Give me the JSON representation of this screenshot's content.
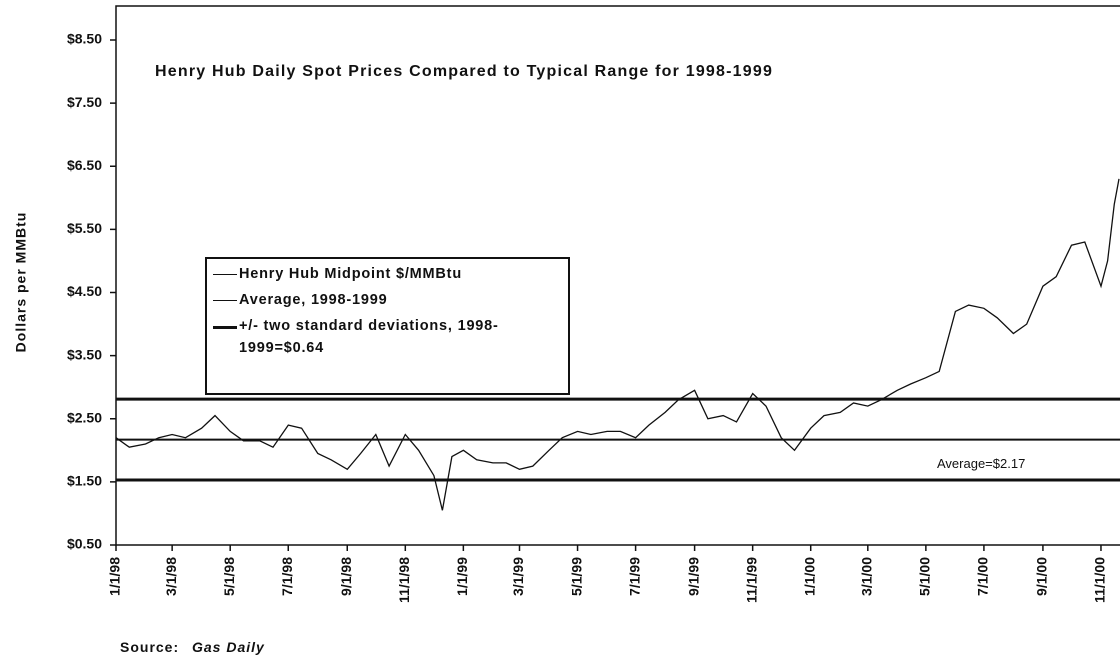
{
  "chart_data": {
    "type": "line",
    "title": "Henry Hub Daily Spot Prices Compared to Typical Range for 1998-1999",
    "y_label": "Dollars per MMBtu",
    "source": {
      "label": "Source:",
      "name": "Gas Daily"
    },
    "x": [
      "1998-01-01",
      "1998-01-15",
      "1998-02-01",
      "1998-02-15",
      "1998-03-01",
      "1998-03-15",
      "1998-04-01",
      "1998-04-15",
      "1998-05-01",
      "1998-05-15",
      "1998-06-01",
      "1998-06-15",
      "1998-07-01",
      "1998-07-15",
      "1998-08-01",
      "1998-08-15",
      "1998-09-01",
      "1998-09-15",
      "1998-10-01",
      "1998-10-15",
      "1998-11-01",
      "1998-11-15",
      "1998-12-01",
      "1998-12-10",
      "1998-12-20",
      "1999-01-01",
      "1999-01-15",
      "1999-02-01",
      "1999-02-15",
      "1999-03-01",
      "1999-03-15",
      "1999-04-01",
      "1999-04-15",
      "1999-05-01",
      "1999-05-15",
      "1999-06-01",
      "1999-06-15",
      "1999-07-01",
      "1999-07-15",
      "1999-08-01",
      "1999-08-15",
      "1999-09-01",
      "1999-09-15",
      "1999-10-01",
      "1999-10-15",
      "1999-11-01",
      "1999-11-15",
      "1999-12-01",
      "1999-12-15",
      "2000-01-01",
      "2000-01-15",
      "2000-02-01",
      "2000-02-15",
      "2000-03-01",
      "2000-03-15",
      "2000-04-01",
      "2000-04-15",
      "2000-05-01",
      "2000-05-15",
      "2000-06-01",
      "2000-06-15",
      "2000-07-01",
      "2000-07-15",
      "2000-08-01",
      "2000-08-15",
      "2000-09-01",
      "2000-09-15",
      "2000-10-01",
      "2000-10-15",
      "2000-11-01",
      "2000-11-08",
      "2000-11-15",
      "2000-11-20"
    ],
    "series": [
      {
        "name": "Henry Hub Midpoint $/MMBtu",
        "color": "#111111",
        "values": [
          2.2,
          2.05,
          2.1,
          2.2,
          2.25,
          2.2,
          2.35,
          2.55,
          2.3,
          2.15,
          2.15,
          2.05,
          2.4,
          2.35,
          1.95,
          1.85,
          1.7,
          1.95,
          2.25,
          1.75,
          2.25,
          2.0,
          1.6,
          1.05,
          1.9,
          2.0,
          1.85,
          1.8,
          1.8,
          1.7,
          1.75,
          2.0,
          2.2,
          2.3,
          2.25,
          2.3,
          2.3,
          2.2,
          2.4,
          2.6,
          2.8,
          2.95,
          2.5,
          2.55,
          2.45,
          2.9,
          2.7,
          2.2,
          2.0,
          2.35,
          2.55,
          2.6,
          2.75,
          2.7,
          2.8,
          2.95,
          3.05,
          3.15,
          3.25,
          4.2,
          4.3,
          4.25,
          4.1,
          3.85,
          4.0,
          4.6,
          4.75,
          5.25,
          5.3,
          4.6,
          5.0,
          5.9,
          6.3
        ]
      }
    ],
    "average": {
      "name": "Average, 1998-1999",
      "value": 2.17,
      "label": "Average=$2.17"
    },
    "bands": {
      "name": "+/- two standard deviations, 1998-1999=$0.64",
      "values": [
        2.81,
        1.53
      ]
    },
    "xlim": [
      "1998-01-01",
      "2000-11-21"
    ],
    "xticks": [
      {
        "value": "1998-01-01",
        "label": "1/1/98"
      },
      {
        "value": "1998-03-01",
        "label": "3/1/98"
      },
      {
        "value": "1998-05-01",
        "label": "5/1/98"
      },
      {
        "value": "1998-07-01",
        "label": "7/1/98"
      },
      {
        "value": "1998-09-01",
        "label": "9/1/98"
      },
      {
        "value": "1998-11-01",
        "label": "11/1/98"
      },
      {
        "value": "1999-01-01",
        "label": "1/1/99"
      },
      {
        "value": "1999-03-01",
        "label": "3/1/99"
      },
      {
        "value": "1999-05-01",
        "label": "5/1/99"
      },
      {
        "value": "1999-07-01",
        "label": "7/1/99"
      },
      {
        "value": "1999-09-01",
        "label": "9/1/99"
      },
      {
        "value": "1999-11-01",
        "label": "11/1/99"
      },
      {
        "value": "2000-01-01",
        "label": "1/1/00"
      },
      {
        "value": "2000-03-01",
        "label": "3/1/00"
      },
      {
        "value": "2000-05-01",
        "label": "5/1/00"
      },
      {
        "value": "2000-07-01",
        "label": "7/1/00"
      },
      {
        "value": "2000-09-01",
        "label": "9/1/00"
      },
      {
        "value": "2000-11-01",
        "label": "11/1/00"
      }
    ],
    "ylim": [
      0.5,
      8.5
    ],
    "yticks": [
      {
        "value": 0.5,
        "label": "$0.50"
      },
      {
        "value": 1.5,
        "label": "$1.50"
      },
      {
        "value": 2.5,
        "label": "$2.50"
      },
      {
        "value": 3.5,
        "label": "$3.50"
      },
      {
        "value": 4.5,
        "label": "$4.50"
      },
      {
        "value": 5.5,
        "label": "$5.50"
      },
      {
        "value": 6.5,
        "label": "$6.50"
      },
      {
        "value": 7.5,
        "label": "$7.50"
      },
      {
        "value": 8.5,
        "label": "$8.50"
      }
    ]
  }
}
